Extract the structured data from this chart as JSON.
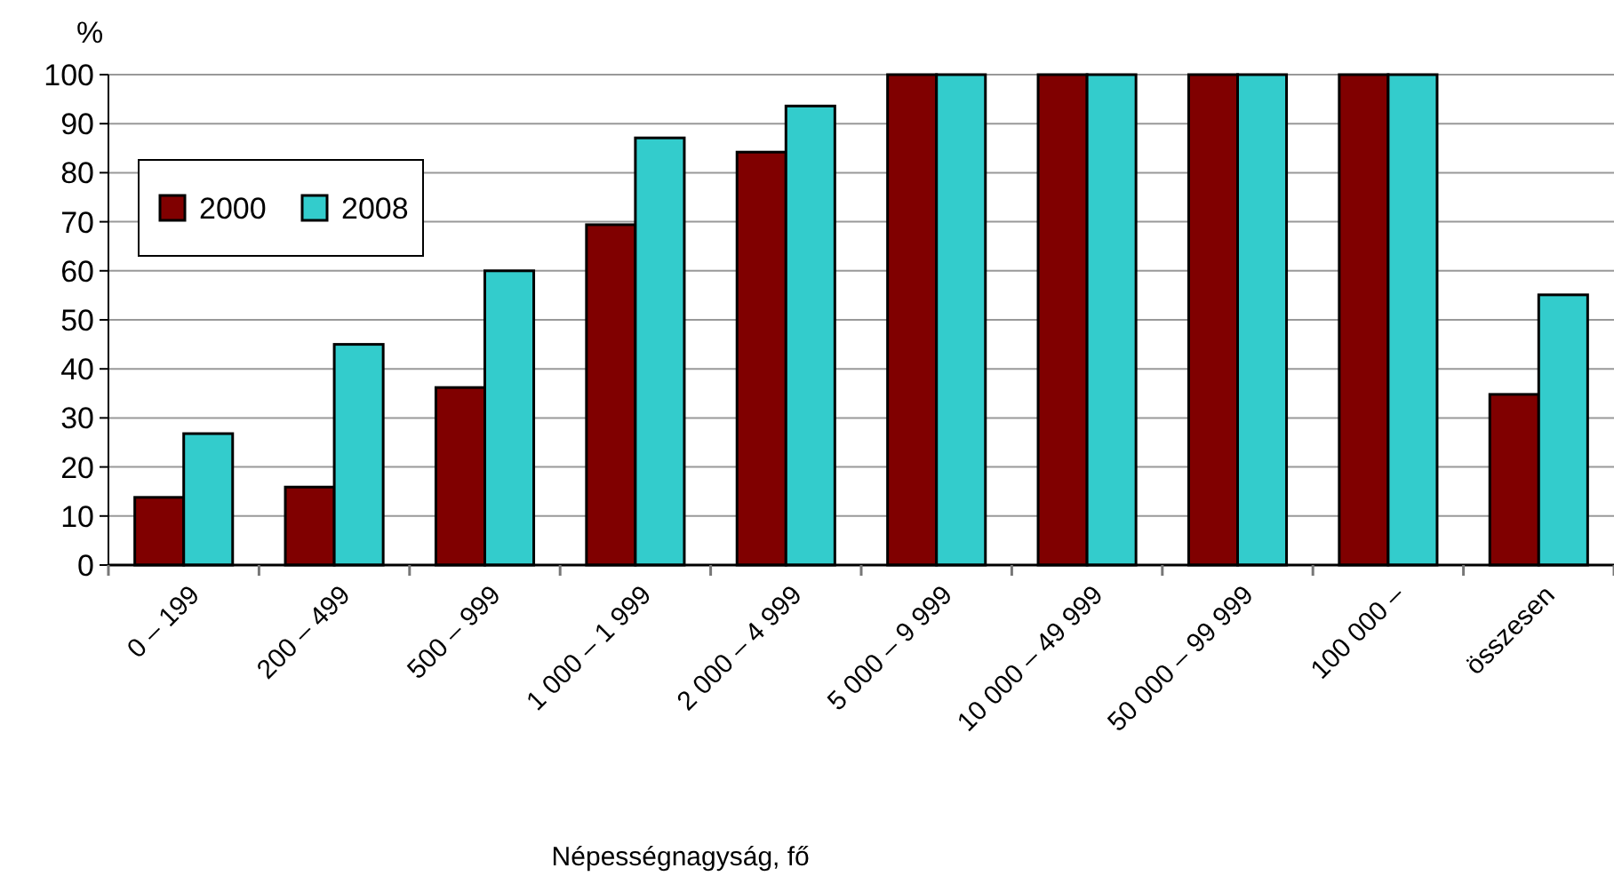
{
  "chart_data": {
    "type": "bar",
    "ylabel": "%",
    "xlabel": "Népességnagyság, fő",
    "categories": [
      "0 – 199",
      "200 – 499",
      "500 – 999",
      "1 000 – 1 999",
      "2 000 – 4 999",
      "5 000 – 9 999",
      "10 000 – 49 999",
      "50 000 – 99 999",
      "100 000 –",
      "összesen"
    ],
    "series": [
      {
        "name": "2000",
        "color": "#800000",
        "values": [
          13.8,
          15.9,
          36.2,
          69.4,
          84.2,
          100,
          100,
          100,
          100,
          34.8
        ]
      },
      {
        "name": "2008",
        "color": "#33cccc",
        "values": [
          26.8,
          45,
          60,
          87.1,
          93.6,
          100,
          100,
          100,
          100,
          55.1
        ]
      }
    ],
    "ylim": [
      0,
      100
    ],
    "yticks": [
      0,
      10,
      20,
      30,
      40,
      50,
      60,
      70,
      80,
      90,
      100
    ],
    "grid": "y",
    "legend": "top left"
  }
}
